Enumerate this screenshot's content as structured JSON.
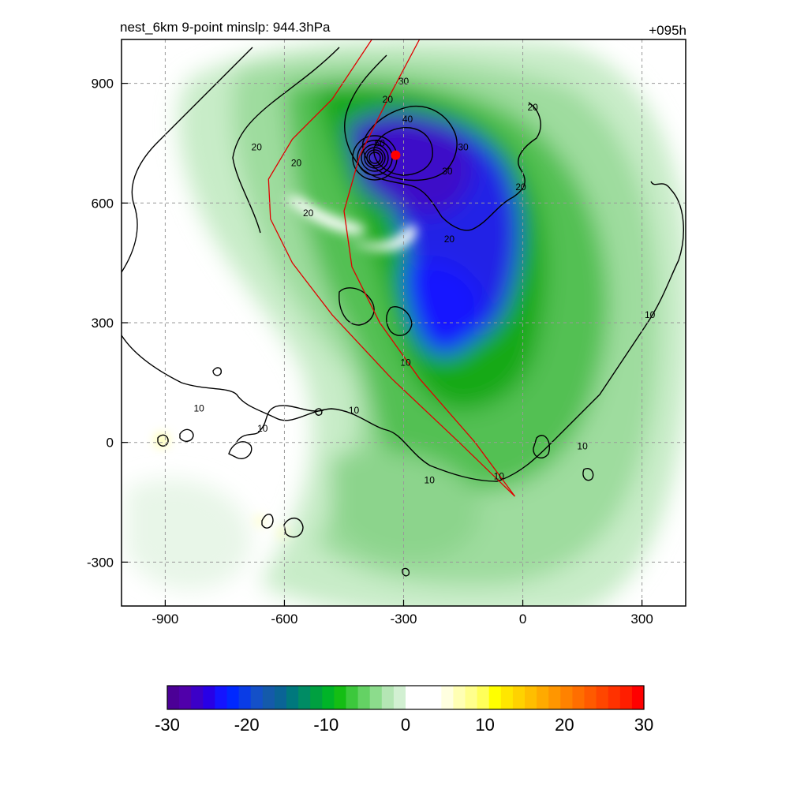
{
  "chart_data": {
    "type": "heatmap",
    "title_left": "nest_6km  9-point minslp: 944.3hPa",
    "title_right": "+095h",
    "xlim": [
      -1010,
      410
    ],
    "ylim": [
      -410,
      1010
    ],
    "xticks": [
      -900,
      -600,
      -300,
      0,
      300
    ],
    "yticks": [
      900,
      600,
      300,
      0,
      -300
    ],
    "grid": true,
    "colorbar": {
      "min": -30,
      "max": 30,
      "ticks": [
        -30,
        -20,
        -10,
        0,
        10,
        20,
        30
      ],
      "colors": [
        "#4b0096",
        "#5000aa",
        "#3c00c8",
        "#2800e6",
        "#1414ff",
        "#0028ff",
        "#0a3ce6",
        "#1450c8",
        "#145aaa",
        "#0a6496",
        "#00787d",
        "#008c64",
        "#00a040",
        "#00b428",
        "#14be14",
        "#3cc83c",
        "#64d264",
        "#8cdc8c",
        "#b4e6b4",
        "#d2f0d2",
        "#ffffff",
        "#ffffff",
        "#ffffff",
        "#ffffe0",
        "#ffffb4",
        "#ffff8c",
        "#ffff5a",
        "#ffff00",
        "#ffe600",
        "#ffd200",
        "#ffbe00",
        "#ffaa00",
        "#ff9600",
        "#ff8200",
        "#ff6e00",
        "#ff5a00",
        "#ff4600",
        "#ff3200",
        "#ff1e00",
        "#ff0000"
      ]
    },
    "contour_labels": [
      {
        "text": "10",
        "x": -815,
        "y": 85
      },
      {
        "text": "10",
        "x": -655,
        "y": 35
      },
      {
        "text": "10",
        "x": -425,
        "y": 80
      },
      {
        "text": "10",
        "x": -295,
        "y": 200
      },
      {
        "text": "10",
        "x": -235,
        "y": -95
      },
      {
        "text": "10",
        "x": -60,
        "y": -85
      },
      {
        "text": "10",
        "x": 150,
        "y": -10
      },
      {
        "text": "10",
        "x": 320,
        "y": 320
      },
      {
        "text": "20",
        "x": -670,
        "y": 740
      },
      {
        "text": "20",
        "x": -570,
        "y": 700
      },
      {
        "text": "20",
        "x": -540,
        "y": 575
      },
      {
        "text": "20",
        "x": -340,
        "y": 860
      },
      {
        "text": "20",
        "x": -185,
        "y": 510
      },
      {
        "text": "20",
        "x": -5,
        "y": 640
      },
      {
        "text": "20",
        "x": 25,
        "y": 840
      },
      {
        "text": "30",
        "x": -300,
        "y": 905
      },
      {
        "text": "30",
        "x": -190,
        "y": 680
      },
      {
        "text": "30",
        "x": -150,
        "y": 740
      },
      {
        "text": "40",
        "x": -290,
        "y": 810
      },
      {
        "text": "50",
        "x": -360,
        "y": 750
      }
    ],
    "storm_center": {
      "x": -320,
      "y": 720
    },
    "track_outer": [
      [
        -20,
        -135
      ],
      [
        -160,
        0
      ],
      [
        -330,
        160
      ],
      [
        -480,
        320
      ],
      [
        -580,
        450
      ],
      [
        -635,
        560
      ],
      [
        -640,
        660
      ],
      [
        -580,
        760
      ],
      [
        -480,
        860
      ],
      [
        -380,
        1010
      ]
    ],
    "track_inner": [
      [
        -20,
        -135
      ],
      [
        -120,
        0
      ],
      [
        -260,
        160
      ],
      [
        -360,
        300
      ],
      [
        -430,
        440
      ],
      [
        -450,
        580
      ],
      [
        -410,
        720
      ],
      [
        -340,
        860
      ],
      [
        -260,
        1010
      ]
    ]
  }
}
